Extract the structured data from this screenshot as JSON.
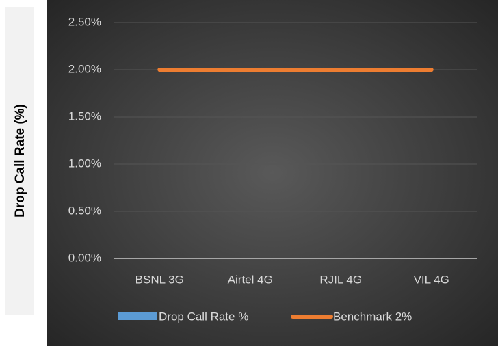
{
  "chart_data": {
    "type": "bar-line",
    "y_label": "Drop Call Rate (%)",
    "categories": [
      "BSNL 3G",
      "Airtel 4G",
      "RJIL 4G",
      "VIL 4G"
    ],
    "series": [
      {
        "name": "Drop Call Rate %",
        "color": "#5b9bd5",
        "type": "bar",
        "values": [
          0,
          0,
          0,
          0
        ]
      },
      {
        "name": "Benchmark 2%",
        "color": "#ed7d31",
        "type": "line",
        "values": [
          2,
          2,
          2,
          2
        ]
      }
    ],
    "ylim": [
      0,
      2.5
    ],
    "yticks": [
      {
        "value": 0,
        "label": "0.00%"
      },
      {
        "value": 0.5,
        "label": "0.50%"
      },
      {
        "value": 1,
        "label": "1.00%"
      },
      {
        "value": 1.5,
        "label": "1.50%"
      },
      {
        "value": 2,
        "label": "2.00%"
      },
      {
        "value": 2.5,
        "label": "2.50%"
      }
    ],
    "grid": true,
    "legend": "bottom"
  }
}
